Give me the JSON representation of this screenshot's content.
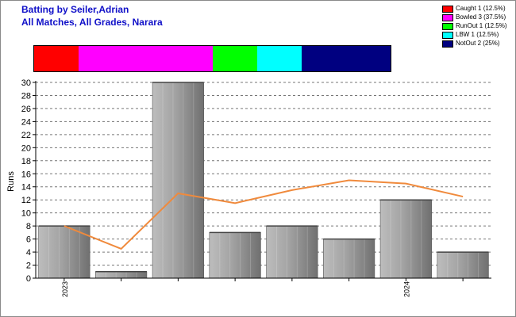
{
  "header": {
    "title_line1": "Batting by Seiler,Adrian",
    "title_line2": "All Matches, All Grades, Narara"
  },
  "legend": [
    {
      "label": "Caught 1 (12.5%)",
      "color": "#ff0000"
    },
    {
      "label": "Bowled 3 (37.5%)",
      "color": "#ff00ff"
    },
    {
      "label": "RunOut 1 (12.5%)",
      "color": "#00ff00"
    },
    {
      "label": "LBW 1 (12.5%)",
      "color": "#00ffff"
    },
    {
      "label": "NotOut 2 (25%)",
      "color": "#000080"
    }
  ],
  "dismissals": [
    {
      "type": "Caught",
      "count": 1,
      "color": "#ff0000"
    },
    {
      "type": "Bowled",
      "count": 3,
      "color": "#ff00ff"
    },
    {
      "type": "RunOut",
      "count": 1,
      "color": "#00ff00"
    },
    {
      "type": "LBW",
      "count": 1,
      "color": "#00ffff"
    },
    {
      "type": "NotOut",
      "count": 2,
      "color": "#000080"
    }
  ],
  "chart_data": {
    "type": "bar",
    "ylabel": "Runs",
    "ylim": [
      0,
      30
    ],
    "yticks": [
      0,
      2,
      4,
      6,
      8,
      10,
      12,
      14,
      16,
      18,
      20,
      22,
      24,
      26,
      28,
      30
    ],
    "grid": true,
    "values": [
      8,
      1,
      30,
      7,
      8,
      6,
      12,
      4
    ],
    "x_tick_labels": [
      {
        "index": 0,
        "label": "2023"
      },
      {
        "index": 6,
        "label": "2024"
      }
    ],
    "series": [
      {
        "type": "bar",
        "values": [
          8,
          1,
          30,
          7,
          8,
          6,
          12,
          4
        ],
        "color": "#a0a0a0"
      },
      {
        "type": "line",
        "values": [
          8,
          4.5,
          13,
          11.5,
          13.5,
          15,
          14.5,
          12.5
        ],
        "color": "#f08a3c"
      }
    ]
  }
}
